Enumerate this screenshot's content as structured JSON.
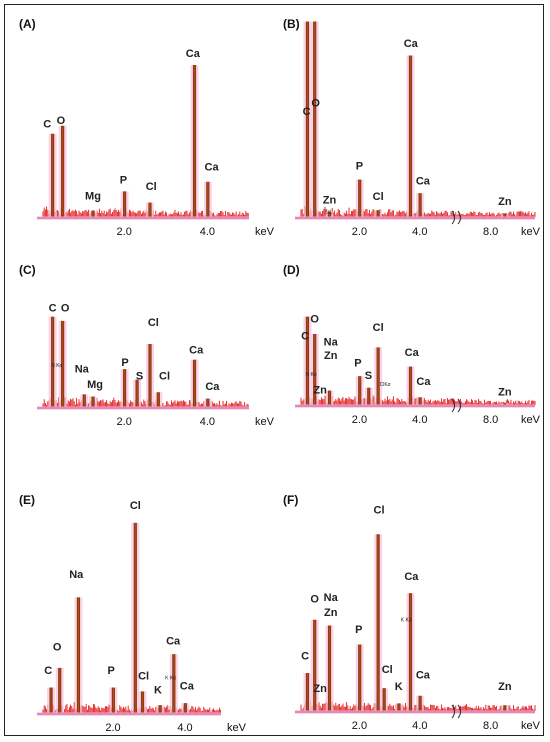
{
  "chart_data": [
    {
      "panel": "(A)",
      "type": "bar",
      "xunit": "keV",
      "ticks": [
        {
          "v": 2.0,
          "t": "2.0"
        },
        {
          "v": 4.0,
          "t": "4.0"
        }
      ],
      "xlim": [
        0,
        5
      ],
      "ylim": [
        0,
        100
      ],
      "break": null,
      "peaks": [
        {
          "el": "C",
          "x": 0.28,
          "h": 52
        },
        {
          "el": "O",
          "x": 0.52,
          "h": 57
        },
        {
          "el": "Mg",
          "x": 1.25,
          "h": 4
        },
        {
          "el": "P",
          "x": 2.01,
          "h": 16
        },
        {
          "el": "Cl",
          "x": 2.62,
          "h": 9
        },
        {
          "el": "Ca",
          "x": 3.69,
          "h": 95
        },
        {
          "el": "Ca",
          "x": 4.01,
          "h": 22
        }
      ],
      "labels": [
        {
          "t": "C",
          "x": 0.15,
          "y": 56
        },
        {
          "t": "O",
          "x": 0.48,
          "y": 58
        },
        {
          "t": "Mg",
          "x": 1.25,
          "y": 11
        },
        {
          "t": "P",
          "x": 1.98,
          "y": 21
        },
        {
          "t": "Cl",
          "x": 2.65,
          "y": 17
        },
        {
          "t": "Ca",
          "x": 3.65,
          "y": 100
        },
        {
          "t": "Ca",
          "x": 4.1,
          "y": 29
        }
      ]
    },
    {
      "panel": "(B)",
      "type": "bar",
      "xunit": "keV",
      "ticks": [
        {
          "v": 2.0,
          "t": "2.0"
        },
        {
          "v": 4.0,
          "t": "4.0"
        },
        {
          "v": 8.0,
          "t": "8.0"
        }
      ],
      "xlim": [
        0,
        10
      ],
      "ylim": [
        0,
        100
      ],
      "break": [
        5.0,
        6.8
      ],
      "peaks": [
        {
          "el": "C",
          "x": 0.28,
          "h": 115
        },
        {
          "el": "O",
          "x": 0.52,
          "h": 115
        },
        {
          "el": "Zn",
          "x": 1.01,
          "h": 3
        },
        {
          "el": "P",
          "x": 2.01,
          "h": 22
        },
        {
          "el": "Cl",
          "x": 2.62,
          "h": 4
        },
        {
          "el": "Ca",
          "x": 3.69,
          "h": 95
        },
        {
          "el": "Ca",
          "x": 4.01,
          "h": 14
        },
        {
          "el": "Zn",
          "x": 8.64,
          "h": 2
        }
      ],
      "labels": [
        {
          "t": "C",
          "x": 0.25,
          "y": 60
        },
        {
          "t": "O",
          "x": 0.55,
          "y": 65
        },
        {
          "t": "Zn",
          "x": 1.01,
          "y": 8
        },
        {
          "t": "ZnL",
          "x": 0.98,
          "y": 2,
          "small": true
        },
        {
          "t": "P",
          "x": 2.0,
          "y": 28
        },
        {
          "t": "Cl",
          "x": 2.62,
          "y": 10
        },
        {
          "t": "Ca",
          "x": 3.7,
          "y": 100
        },
        {
          "t": "Ca",
          "x": 4.1,
          "y": 19
        },
        {
          "t": "Zn",
          "x": 8.64,
          "y": 7
        }
      ]
    },
    {
      "panel": "(C)",
      "type": "bar",
      "xunit": "keV",
      "ticks": [
        {
          "v": 2.0,
          "t": "2.0"
        },
        {
          "v": 4.0,
          "t": "4.0"
        }
      ],
      "xlim": [
        0,
        5
      ],
      "ylim": [
        0,
        100
      ],
      "break": null,
      "peaks": [
        {
          "el": "C",
          "x": 0.28,
          "h": 86
        },
        {
          "el": "O",
          "x": 0.52,
          "h": 82
        },
        {
          "el": "Na",
          "x": 1.04,
          "h": 12
        },
        {
          "el": "Mg",
          "x": 1.25,
          "h": 10
        },
        {
          "el": "P",
          "x": 2.01,
          "h": 36
        },
        {
          "el": "S",
          "x": 2.31,
          "h": 26
        },
        {
          "el": "Cl",
          "x": 2.62,
          "h": 60
        },
        {
          "el": "Cl",
          "x": 2.82,
          "h": 14
        },
        {
          "el": "Ca",
          "x": 3.69,
          "h": 45
        },
        {
          "el": "Ca",
          "x": 4.01,
          "h": 8
        }
      ],
      "labels": [
        {
          "t": "C",
          "x": 0.28,
          "y": 91
        },
        {
          "t": "O",
          "x": 0.58,
          "y": 91
        },
        {
          "t": "N Kα",
          "x": 0.38,
          "y": 38,
          "small": true
        },
        {
          "t": "Na",
          "x": 0.98,
          "y": 33
        },
        {
          "t": "Mg",
          "x": 1.3,
          "y": 18
        },
        {
          "t": "P",
          "x": 2.02,
          "y": 39
        },
        {
          "t": "S",
          "x": 2.37,
          "y": 26
        },
        {
          "t": "Cl",
          "x": 2.7,
          "y": 77
        },
        {
          "t": "Cl",
          "x": 2.97,
          "y": 26
        },
        {
          "t": "Ca",
          "x": 3.73,
          "y": 51
        },
        {
          "t": "Ca",
          "x": 4.12,
          "y": 16
        }
      ]
    },
    {
      "panel": "(D)",
      "type": "bar",
      "xunit": "keV",
      "ticks": [
        {
          "v": 2.0,
          "t": "2.0"
        },
        {
          "v": 4.0,
          "t": "4.0"
        },
        {
          "v": 8.0,
          "t": "8.0"
        }
      ],
      "xlim": [
        0,
        10
      ],
      "ylim": [
        0,
        100
      ],
      "break": [
        5.0,
        6.8
      ],
      "peaks": [
        {
          "el": "C",
          "x": 0.28,
          "h": 92
        },
        {
          "el": "O",
          "x": 0.52,
          "h": 74
        },
        {
          "el": "Zn",
          "x": 1.01,
          "h": 15
        },
        {
          "el": "P",
          "x": 2.01,
          "h": 30
        },
        {
          "el": "S",
          "x": 2.31,
          "h": 18
        },
        {
          "el": "Cl",
          "x": 2.62,
          "h": 60
        },
        {
          "el": "Ca",
          "x": 3.69,
          "h": 40
        },
        {
          "el": "Ca",
          "x": 4.01,
          "h": 8
        },
        {
          "el": "Zn",
          "x": 8.64,
          "h": 2
        }
      ],
      "labels": [
        {
          "t": "C",
          "x": 0.2,
          "y": 68
        },
        {
          "t": "O",
          "x": 0.52,
          "y": 86
        },
        {
          "t": "N Kα",
          "x": 0.4,
          "y": 30,
          "small": true
        },
        {
          "t": "Na",
          "x": 1.05,
          "y": 62
        },
        {
          "t": "Zn",
          "x": 1.05,
          "y": 48
        },
        {
          "t": "Zn",
          "x": 0.7,
          "y": 12
        },
        {
          "t": "P",
          "x": 1.95,
          "y": 40
        },
        {
          "t": "S",
          "x": 2.3,
          "y": 27
        },
        {
          "t": "Cl",
          "x": 2.62,
          "y": 77
        },
        {
          "t": "ClKα",
          "x": 2.85,
          "y": 20,
          "small": true
        },
        {
          "t": "Ca",
          "x": 3.73,
          "y": 51
        },
        {
          "t": "Ca",
          "x": 4.12,
          "y": 21
        },
        {
          "t": "Zn",
          "x": 8.64,
          "y": 10
        }
      ]
    },
    {
      "panel": "(E)",
      "type": "bar",
      "xunit": "keV",
      "ticks": [
        {
          "v": 2.0,
          "t": "2.0"
        },
        {
          "v": 4.0,
          "t": "4.0"
        }
      ],
      "xlim": [
        0,
        5
      ],
      "ylim": [
        0,
        100
      ],
      "break": null,
      "peaks": [
        {
          "el": "C",
          "x": 0.28,
          "h": 13
        },
        {
          "el": "O",
          "x": 0.52,
          "h": 23
        },
        {
          "el": "Na",
          "x": 1.04,
          "h": 59
        },
        {
          "el": "P",
          "x": 2.01,
          "h": 13
        },
        {
          "el": "Cl",
          "x": 2.62,
          "h": 97
        },
        {
          "el": "Cl",
          "x": 2.82,
          "h": 11
        },
        {
          "el": "K",
          "x": 3.31,
          "h": 4
        },
        {
          "el": "Ca",
          "x": 3.69,
          "h": 30
        },
        {
          "el": "Ca",
          "x": 4.01,
          "h": 5
        }
      ],
      "labels": [
        {
          "t": "C",
          "x": 0.2,
          "y": 20
        },
        {
          "t": "O",
          "x": 0.45,
          "y": 32
        },
        {
          "t": "Na",
          "x": 0.98,
          "y": 69
        },
        {
          "t": "P",
          "x": 1.95,
          "y": 20
        },
        {
          "t": "Cl",
          "x": 2.62,
          "y": 104
        },
        {
          "t": "Cl",
          "x": 2.85,
          "y": 17
        },
        {
          "t": "K",
          "x": 3.25,
          "y": 10
        },
        {
          "t": "K Kα",
          "x": 3.6,
          "y": 17,
          "small": true
        },
        {
          "t": "Ca",
          "x": 3.67,
          "y": 35
        },
        {
          "t": "Ca",
          "x": 4.05,
          "y": 12
        }
      ]
    },
    {
      "panel": "(F)",
      "type": "bar",
      "xunit": "keV",
      "ticks": [
        {
          "v": 2.0,
          "t": "2.0"
        },
        {
          "v": 4.0,
          "t": "4.0"
        },
        {
          "v": 8.0,
          "t": "8.0"
        }
      ],
      "xlim": [
        0,
        10
      ],
      "ylim": [
        0,
        100
      ],
      "break": [
        5.0,
        6.8
      ],
      "peaks": [
        {
          "el": "C",
          "x": 0.28,
          "h": 20
        },
        {
          "el": "O",
          "x": 0.52,
          "h": 48
        },
        {
          "el": "Zn",
          "x": 1.01,
          "h": 45
        },
        {
          "el": "P",
          "x": 2.01,
          "h": 35
        },
        {
          "el": "Cl",
          "x": 2.62,
          "h": 93
        },
        {
          "el": "Cl",
          "x": 2.82,
          "h": 12
        },
        {
          "el": "K",
          "x": 3.31,
          "h": 4
        },
        {
          "el": "Ca",
          "x": 3.69,
          "h": 62
        },
        {
          "el": "Ca",
          "x": 4.01,
          "h": 8
        },
        {
          "el": "Zn",
          "x": 8.64,
          "h": 3
        }
      ],
      "labels": [
        {
          "t": "C",
          "x": 0.2,
          "y": 27
        },
        {
          "t": "O",
          "x": 0.52,
          "y": 57
        },
        {
          "t": "Na",
          "x": 1.05,
          "y": 58
        },
        {
          "t": "Zn",
          "x": 1.05,
          "y": 50
        },
        {
          "t": "Zn",
          "x": 0.7,
          "y": 10
        },
        {
          "t": "P",
          "x": 1.98,
          "y": 41
        },
        {
          "t": "Cl",
          "x": 2.65,
          "y": 104
        },
        {
          "t": "Cl",
          "x": 2.92,
          "y": 20
        },
        {
          "t": "K",
          "x": 3.3,
          "y": 11
        },
        {
          "t": "K Kα",
          "x": 3.55,
          "y": 47,
          "small": true
        },
        {
          "t": "Ca",
          "x": 3.72,
          "y": 69
        },
        {
          "t": "Ca",
          "x": 4.1,
          "y": 17
        },
        {
          "t": "Zn",
          "x": 8.64,
          "y": 11
        }
      ]
    }
  ]
}
